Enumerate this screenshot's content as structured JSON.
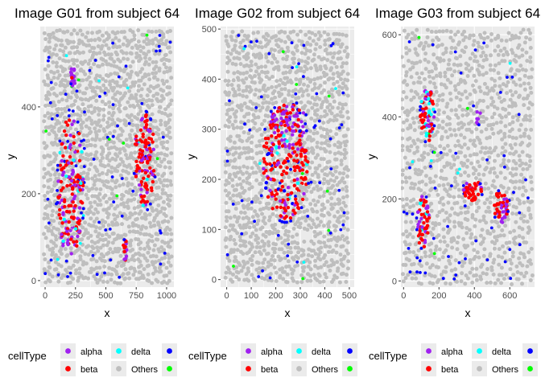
{
  "chart_data": [
    {
      "type": "scatter",
      "title": "Image G01 from subject 64",
      "xlabel": "x",
      "ylabel": "y",
      "xlim": [
        -40,
        1060
      ],
      "ylim": [
        -15,
        585
      ],
      "xticks": [
        0,
        250,
        500,
        750,
        1000
      ],
      "yticks": [
        0,
        200,
        400
      ],
      "background": {
        "xrange": [
          0,
          1030
        ],
        "yrange": [
          0,
          570
        ],
        "cols": 44,
        "rows": 38
      },
      "clusters": [
        {
          "celltype": "beta",
          "cx": 210,
          "cy": 215,
          "rx": 105,
          "ry": 170,
          "n": 170,
          "mix": {
            "beta": 0.62,
            "alpha": 0.28,
            "delta": 0.05,
            "Others": 0.05
          }
        },
        {
          "celltype": "beta",
          "cx": 820,
          "cy": 275,
          "rx": 85,
          "ry": 110,
          "n": 120,
          "mix": {
            "beta": 0.62,
            "alpha": 0.28,
            "delta": 0.06,
            "Others": 0.04
          }
        },
        {
          "celltype": "alpha",
          "cx": 230,
          "cy": 470,
          "rx": 25,
          "ry": 22,
          "n": 18,
          "mix": {
            "alpha": 0.9,
            "beta": 0.1
          }
        },
        {
          "celltype": "alpha",
          "cx": 660,
          "cy": 70,
          "rx": 22,
          "ry": 25,
          "n": 14,
          "mix": {
            "alpha": 0.75,
            "beta": 0.25
          }
        }
      ],
      "scatter_counts": {
        "gamma": 70,
        "epsilon": 8,
        "delta": 6
      }
    },
    {
      "type": "scatter",
      "title": "Image G02 from subject 64",
      "xlabel": "x",
      "ylabel": "y",
      "xlim": [
        -25,
        520
      ],
      "ylim": [
        -15,
        505
      ],
      "xticks": [
        0,
        100,
        200,
        300,
        400,
        500
      ],
      "yticks": [
        0,
        100,
        200,
        300,
        400,
        500
      ],
      "background": {
        "xrange": [
          0,
          490
        ],
        "yrange": [
          0,
          490
        ],
        "cols": 38,
        "rows": 40
      },
      "clusters": [
        {
          "celltype": "beta",
          "cx": 240,
          "cy": 235,
          "rx": 95,
          "ry": 115,
          "n": 230,
          "mix": {
            "beta": 0.64,
            "alpha": 0.26,
            "delta": 0.04,
            "gamma": 0.03,
            "Others": 0.03
          }
        },
        {
          "celltype": "alpha",
          "cx": 250,
          "cy": 320,
          "rx": 70,
          "ry": 30,
          "n": 40,
          "mix": {
            "alpha": 0.5,
            "beta": 0.5
          }
        }
      ],
      "scatter_counts": {
        "gamma": 60,
        "epsilon": 8,
        "delta": 6
      }
    },
    {
      "type": "scatter",
      "title": "Image G03 from subject 64",
      "xlabel": "x",
      "ylabel": "y",
      "xlim": [
        -15,
        740
      ],
      "ylim": [
        -15,
        620
      ],
      "xticks": [
        0,
        200,
        400,
        600
      ],
      "yticks": [
        0,
        200,
        400,
        600
      ],
      "background": {
        "xrange": [
          0,
          720
        ],
        "yrange": [
          0,
          605
        ],
        "cols": 36,
        "rows": 34
      },
      "clusters": [
        {
          "celltype": "beta",
          "cx": 135,
          "cy": 405,
          "rx": 40,
          "ry": 65,
          "n": 70,
          "mix": {
            "beta": 0.55,
            "alpha": 0.25,
            "delta": 0.2
          }
        },
        {
          "celltype": "beta",
          "cx": 110,
          "cy": 145,
          "rx": 35,
          "ry": 65,
          "n": 55,
          "mix": {
            "beta": 0.6,
            "alpha": 0.35,
            "delta": 0.05
          }
        },
        {
          "celltype": "beta",
          "cx": 390,
          "cy": 220,
          "rx": 55,
          "ry": 25,
          "n": 45,
          "mix": {
            "beta": 0.8,
            "alpha": 0.2
          }
        },
        {
          "celltype": "beta",
          "cx": 550,
          "cy": 180,
          "rx": 40,
          "ry": 40,
          "n": 45,
          "mix": {
            "beta": 0.6,
            "alpha": 0.4
          }
        },
        {
          "celltype": "alpha",
          "cx": 420,
          "cy": 400,
          "rx": 15,
          "ry": 20,
          "n": 8,
          "mix": {
            "alpha": 1.0
          }
        }
      ],
      "scatter_counts": {
        "gamma": 55,
        "epsilon": 6,
        "delta": 5
      }
    }
  ],
  "legend": {
    "title": "cellType",
    "placement": "bottom",
    "entries": [
      "alpha",
      "beta",
      "delta",
      "Others",
      "gamma",
      "epsilon"
    ]
  },
  "colors": {
    "alpha": "#A020F0",
    "beta": "#FF0000",
    "delta": "#00FFFF",
    "Others": "#BEBEBE",
    "gamma": "#0000FF",
    "epsilon": "#00FF00",
    "panel_background": "#EBEBEB",
    "grid_major": "#FFFFFF"
  }
}
